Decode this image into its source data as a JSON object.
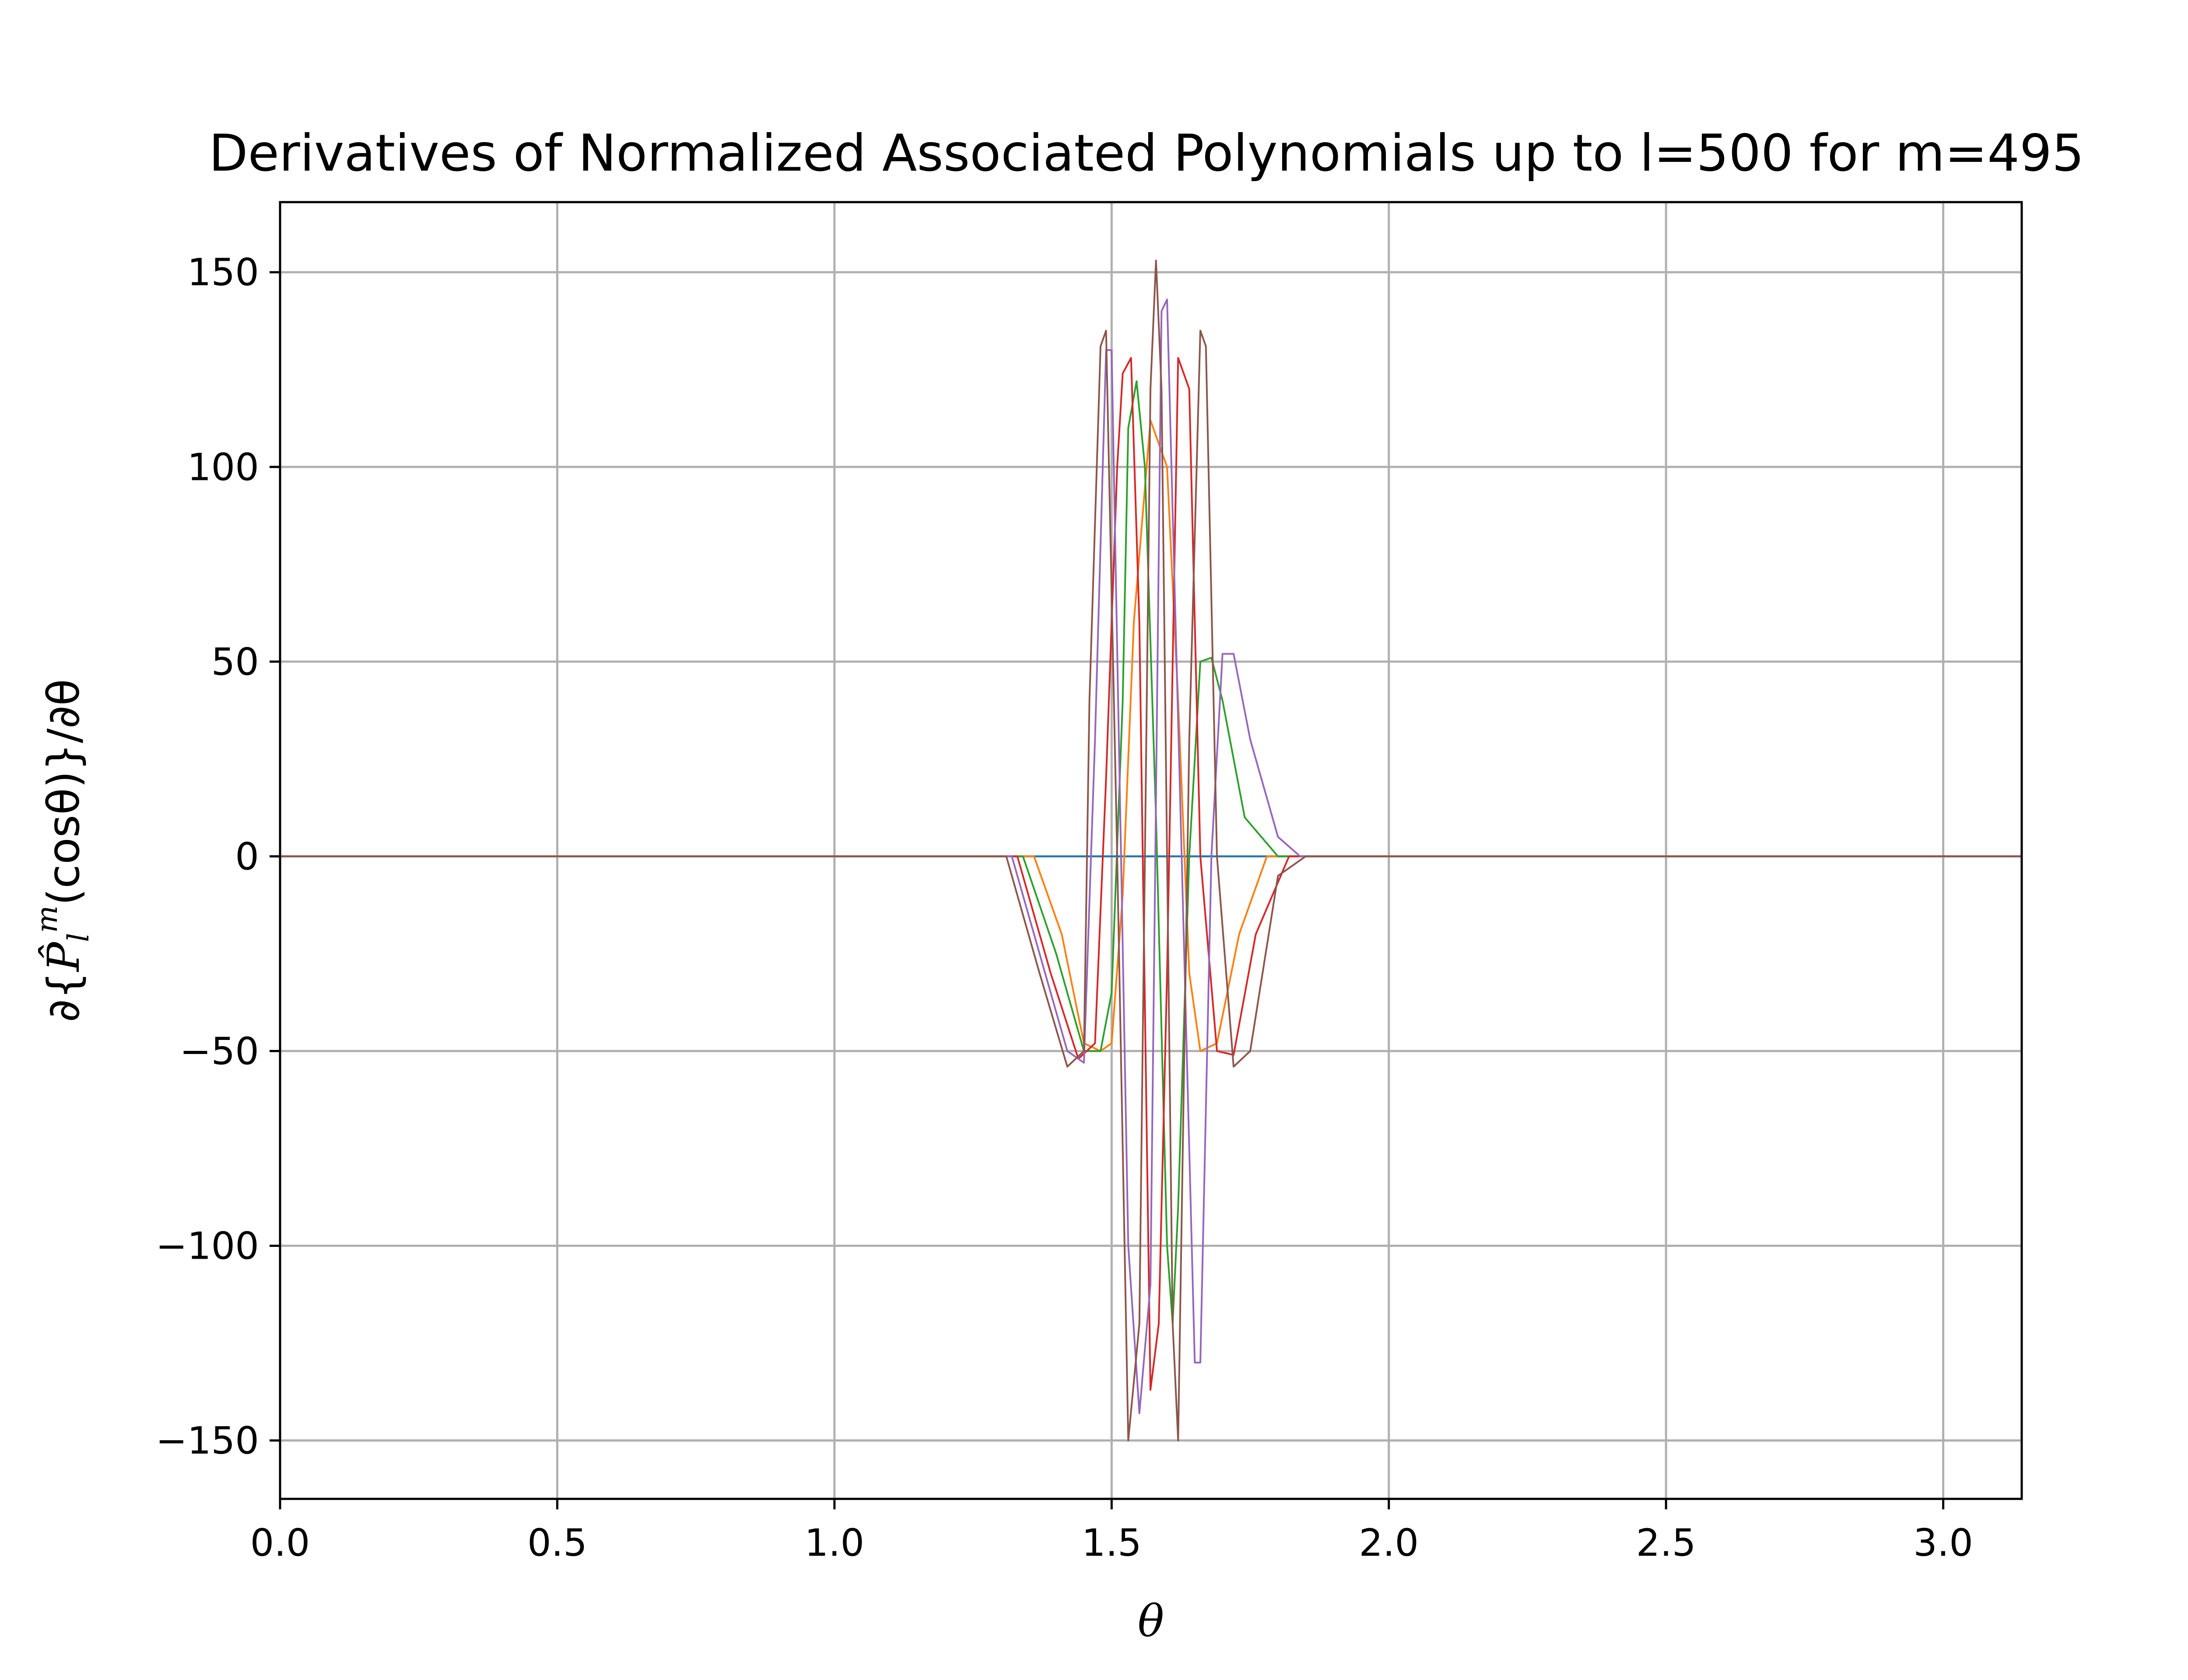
{
  "chart_data": {
    "type": "line",
    "title": "Derivatives of Normalized Associated Polynomials up to l=500 for m=495",
    "xlabel": "θ",
    "ylabel": "∂{P̂lm(cosθ)}/∂θ",
    "ylabel_parts": {
      "prefix": "∂{",
      "base": "P̂",
      "sub": "l",
      "sup": "m",
      "suffix": "(cosθ)}/∂θ"
    },
    "xlim": [
      0.0,
      3.14159
    ],
    "ylim": [
      -165,
      168
    ],
    "xticks": [
      0.0,
      0.5,
      1.0,
      1.5,
      2.0,
      2.5,
      3.0
    ],
    "xtick_labels": [
      "0.0",
      "0.5",
      "1.0",
      "1.5",
      "2.0",
      "2.5",
      "3.0"
    ],
    "yticks": [
      150,
      100,
      50,
      0,
      -50,
      -100,
      -150
    ],
    "ytick_labels": [
      "150",
      "100",
      "50",
      "0",
      "−50",
      "−100",
      "−150"
    ],
    "grid": true,
    "legend": "none",
    "series": [
      {
        "color": "#1f77b4",
        "x": [
          0.0,
          1.5708,
          3.1416
        ],
        "y": [
          0,
          0,
          0
        ]
      },
      {
        "color": "#ff7f0e",
        "x": [
          0.0,
          1.36,
          1.41,
          1.45,
          1.48,
          1.5,
          1.52,
          1.54,
          1.57,
          1.6,
          1.62,
          1.64,
          1.66,
          1.69,
          1.73,
          1.78,
          3.1416
        ],
        "y": [
          0,
          0,
          -20,
          -48,
          -50,
          -48,
          -10,
          60,
          112,
          100,
          40,
          -30,
          -50,
          -48,
          -20,
          0,
          0
        ]
      },
      {
        "color": "#2ca02c",
        "x": [
          0.0,
          1.34,
          1.4,
          1.45,
          1.48,
          1.5,
          1.52,
          1.53,
          1.545,
          1.56,
          1.58,
          1.6,
          1.61,
          1.62,
          1.64,
          1.66,
          1.68,
          1.7,
          1.74,
          1.8,
          3.1416
        ],
        "y": [
          0,
          0,
          -25,
          -50,
          -50,
          -35,
          40,
          110,
          122,
          100,
          10,
          -100,
          -120,
          -90,
          0,
          50,
          51,
          40,
          10,
          0,
          0
        ]
      },
      {
        "color": "#d62728",
        "x": [
          0.0,
          1.33,
          1.39,
          1.44,
          1.47,
          1.49,
          1.51,
          1.52,
          1.535,
          1.55,
          1.57,
          1.585,
          1.6,
          1.62,
          1.64,
          1.66,
          1.69,
          1.72,
          1.76,
          1.82,
          3.1416
        ],
        "y": [
          0,
          0,
          -30,
          -52,
          -48,
          20,
          100,
          124,
          128,
          60,
          -137,
          -120,
          -30,
          128,
          120,
          0,
          -50,
          -51,
          -20,
          0,
          0
        ]
      },
      {
        "color": "#9467bd",
        "x": [
          0.0,
          1.32,
          1.38,
          1.42,
          1.45,
          1.47,
          1.49,
          1.5,
          1.53,
          1.55,
          1.57,
          1.59,
          1.6,
          1.63,
          1.65,
          1.66,
          1.68,
          1.7,
          1.72,
          1.75,
          1.8,
          1.84,
          3.1416
        ],
        "y": [
          0,
          0,
          -30,
          -50,
          -53,
          30,
          130,
          130,
          -100,
          -143,
          -110,
          140,
          143,
          -20,
          -130,
          -130,
          0,
          52,
          52,
          30,
          5,
          0,
          0
        ]
      },
      {
        "color": "#8c564b",
        "x": [
          0.0,
          1.31,
          1.37,
          1.42,
          1.45,
          1.46,
          1.48,
          1.49,
          1.51,
          1.53,
          1.55,
          1.57,
          1.58,
          1.59,
          1.61,
          1.62,
          1.64,
          1.66,
          1.67,
          1.69,
          1.72,
          1.75,
          1.8,
          1.85,
          3.1416
        ],
        "y": [
          0,
          0,
          -30,
          -54,
          -50,
          40,
          131,
          135,
          0,
          -150,
          -120,
          120,
          153,
          120,
          -120,
          -150,
          30,
          135,
          131,
          0,
          -54,
          -50,
          -5,
          0,
          0
        ]
      }
    ]
  }
}
